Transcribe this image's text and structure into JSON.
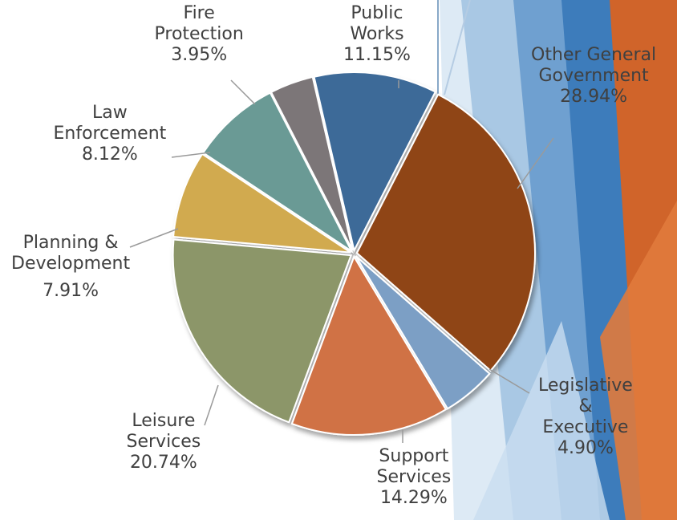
{
  "chart_data": {
    "type": "pie",
    "title": "",
    "slices": [
      {
        "name": "Public Works",
        "label_lines": [
          "Public",
          "Works"
        ],
        "value_label": "11.15%",
        "value": 11.15,
        "color": "#3E6A98"
      },
      {
        "name": "Other General Government",
        "label_lines": [
          "Other General",
          "Government"
        ],
        "value_label": "28.94%",
        "value": 28.94,
        "color": "#8F4417"
      },
      {
        "name": "Legislative & Executive",
        "label_lines": [
          "Legislative",
          "&",
          "Executive"
        ],
        "value_label": "4.90%",
        "value": 4.9,
        "color": "#7C9FC5"
      },
      {
        "name": "Support Services",
        "label_lines": [
          "Support",
          "Services"
        ],
        "value_label": "14.29%",
        "value": 14.29,
        "color": "#D07245"
      },
      {
        "name": "Leisure Services",
        "label_lines": [
          "Leisure",
          "Services"
        ],
        "value_label": "20.74%",
        "value": 20.74,
        "color": "#8C9669"
      },
      {
        "name": "Planning & Development",
        "label_lines": [
          "Planning &",
          "Development"
        ],
        "value_label": "7.91%",
        "value": 7.91,
        "color": "#D1AA4F"
      },
      {
        "name": "Law Enforcement",
        "label_lines": [
          "Law",
          "Enforcement"
        ],
        "value_label": "8.12%",
        "value": 8.12,
        "color": "#6A9A95"
      },
      {
        "name": "Fire Protection",
        "label_lines": [
          "Fire",
          "Protection"
        ],
        "value_label": "3.95%",
        "value": 3.95,
        "color": "#7C7678"
      }
    ],
    "legend": "none",
    "data_labels": "outside with leader lines"
  },
  "theme": {
    "background": "#ffffff",
    "accent_orange": "#D0642A",
    "accent_blue": "#3D7CBB",
    "label_color": "#404040",
    "leader_color": "#9A9A9A"
  }
}
